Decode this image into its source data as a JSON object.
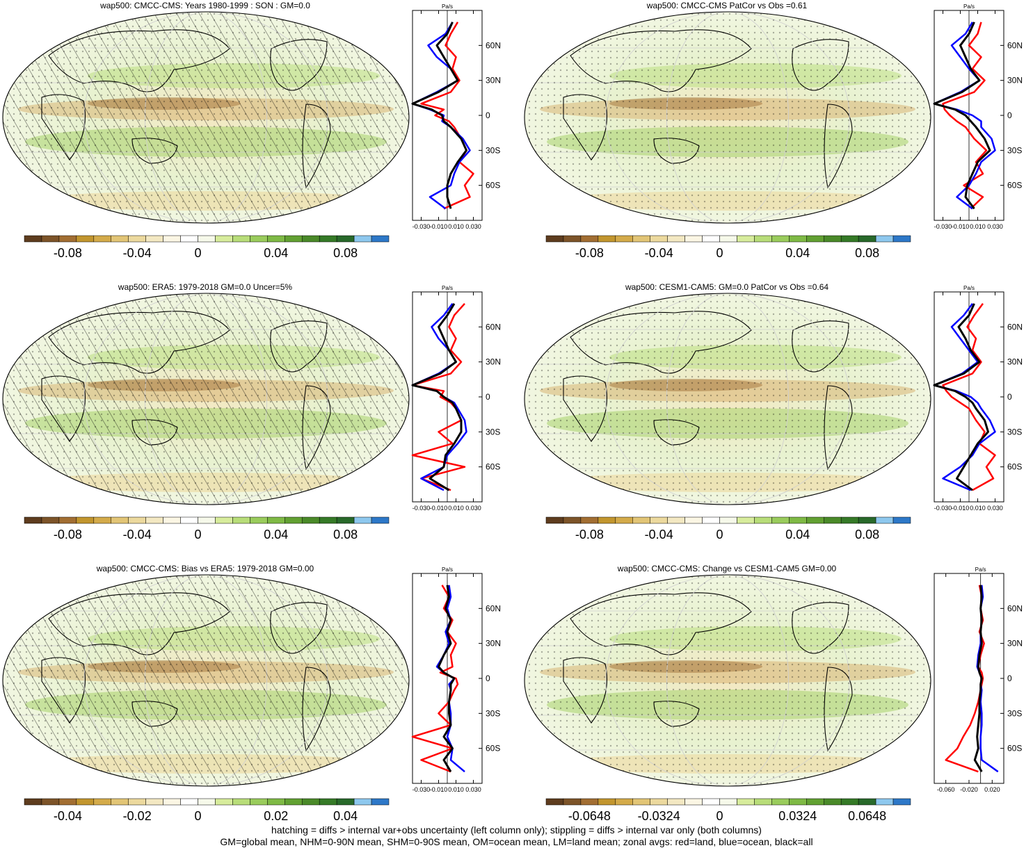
{
  "chart_data": [
    {
      "type": "heatmap",
      "title": "wap500: CMCC-CMS: Years 1980-1999 : SON : GM=0.0",
      "colorbar_ticks": [
        "-0.08",
        "-0.04",
        "0",
        "0.04",
        "0.08"
      ],
      "hatching": true,
      "stippling": true,
      "zonal": {
        "unit": "Pa/s",
        "xticks": [
          "-0.030",
          "-0.010",
          "0.010",
          "0.030"
        ],
        "xlim": [
          -0.04,
          0.04
        ],
        "yticks": [
          "60N",
          "30N",
          "0",
          "30S",
          "60S"
        ],
        "lat": [
          80,
          70,
          60,
          50,
          40,
          30,
          20,
          10,
          5,
          0,
          -5,
          -10,
          -20,
          -30,
          -40,
          -50,
          -60,
          -70,
          -80
        ],
        "series": [
          {
            "name": "land",
            "color": "#ff0000",
            "values": [
              0.012,
              0.004,
              -0.002,
              0.01,
              0.006,
              0.014,
              0.004,
              -0.03,
              -0.004,
              -0.014,
              0.002,
              0.008,
              0.016,
              0.022,
              0.014,
              0.03,
              0.02,
              0.026,
              -0.004
            ]
          },
          {
            "name": "ocean",
            "color": "#0000ff",
            "values": [
              0.006,
              -0.002,
              -0.022,
              -0.012,
              0.004,
              0.012,
              -0.012,
              -0.04,
              -0.02,
              -0.004,
              -0.006,
              0.004,
              0.018,
              0.026,
              0.014,
              0.008,
              0.004,
              -0.02,
              -0.002
            ]
          },
          {
            "name": "all",
            "color": "#000000",
            "values": [
              0.006,
              0.0,
              -0.012,
              -0.004,
              0.004,
              0.012,
              -0.01,
              -0.04,
              -0.018,
              -0.006,
              -0.004,
              0.004,
              0.016,
              0.022,
              0.012,
              0.004,
              0.0,
              0.0,
              0.004
            ]
          }
        ]
      }
    },
    {
      "type": "heatmap",
      "title": "wap500: CMCC-CMS PatCor vs Obs =0.61",
      "colorbar_ticks": [
        "-0.08",
        "-0.04",
        "0",
        "0.04",
        "0.08"
      ],
      "hatching": false,
      "stippling": true,
      "zonal": {
        "unit": "Pa/s",
        "xticks": [
          "-0.030",
          "-0.010",
          "0.010",
          "0.030"
        ],
        "xlim": [
          -0.04,
          0.04
        ],
        "yticks": [
          "60N",
          "30N",
          "0",
          "30S",
          "60S"
        ],
        "lat": [
          80,
          70,
          60,
          50,
          40,
          30,
          20,
          10,
          5,
          0,
          -5,
          -10,
          -20,
          -30,
          -40,
          -50,
          -60,
          -70,
          -80
        ],
        "series": [
          {
            "name": "land",
            "color": "#ff0000",
            "values": [
              0.014,
              0.01,
              0.0,
              0.014,
              0.004,
              0.018,
              0.006,
              -0.03,
              -0.028,
              -0.022,
              -0.014,
              -0.004,
              0.006,
              0.02,
              0.008,
              0.016,
              -0.006,
              0.016,
              0.002
            ]
          },
          {
            "name": "ocean",
            "color": "#0000ff",
            "values": [
              0.004,
              -0.004,
              -0.02,
              -0.01,
              0.0,
              0.012,
              -0.01,
              -0.04,
              -0.014,
              0.004,
              0.014,
              0.014,
              0.026,
              0.03,
              0.014,
              0.008,
              0.0,
              -0.014,
              0.004
            ]
          },
          {
            "name": "all",
            "color": "#000000",
            "values": [
              0.006,
              0.0,
              -0.01,
              -0.004,
              0.002,
              0.012,
              -0.008,
              -0.04,
              -0.016,
              -0.004,
              0.002,
              0.008,
              0.018,
              0.024,
              0.01,
              0.004,
              -0.002,
              -0.004,
              0.006
            ]
          }
        ]
      }
    },
    {
      "type": "heatmap",
      "title": "wap500: ERA5: 1979-2018 GM=0.0 Uncer=5%",
      "colorbar_ticks": [
        "-0.08",
        "-0.04",
        "0",
        "0.04",
        "0.08"
      ],
      "hatching": true,
      "stippling": true,
      "zonal": {
        "unit": "Pa/s",
        "xticks": [
          "-0.030",
          "-0.010",
          "0.010",
          "0.030"
        ],
        "xlim": [
          -0.04,
          0.04
        ],
        "yticks": [
          "60N",
          "30N",
          "0",
          "30S",
          "60S"
        ],
        "lat": [
          80,
          70,
          60,
          50,
          40,
          30,
          20,
          10,
          5,
          0,
          -5,
          -10,
          -20,
          -30,
          -40,
          -50,
          -60,
          -70,
          -80
        ],
        "series": [
          {
            "name": "land",
            "color": "#ff0000",
            "values": [
              0.02,
              0.008,
              0.002,
              0.01,
              0.004,
              0.016,
              0.004,
              -0.04,
              -0.004,
              -0.008,
              0.004,
              0.01,
              0.016,
              -0.01,
              0.006,
              -0.04,
              0.02,
              -0.03,
              0.004
            ]
          },
          {
            "name": "ocean",
            "color": "#0000ff",
            "values": [
              0.006,
              -0.004,
              -0.018,
              -0.01,
              0.002,
              0.01,
              -0.01,
              -0.04,
              -0.012,
              -0.004,
              0.008,
              0.012,
              0.02,
              0.022,
              0.012,
              0.0,
              -0.004,
              -0.03,
              -0.004
            ]
          },
          {
            "name": "all",
            "color": "#000000",
            "values": [
              0.008,
              0.0,
              -0.01,
              -0.004,
              0.002,
              0.01,
              -0.008,
              -0.04,
              -0.012,
              -0.004,
              0.006,
              0.01,
              0.016,
              0.016,
              0.008,
              -0.002,
              -0.004,
              -0.02,
              0.002
            ]
          }
        ]
      }
    },
    {
      "type": "heatmap",
      "title": "wap500: CESM1-CAM5: GM=0.0 PatCor vs Obs =0.64",
      "colorbar_ticks": [
        "-0.08",
        "-0.04",
        "0",
        "0.04",
        "0.08"
      ],
      "hatching": false,
      "stippling": true,
      "zonal": {
        "unit": "Pa/s",
        "xticks": [
          "-0.030",
          "-0.010",
          "0.010",
          "0.030"
        ],
        "xlim": [
          -0.04,
          0.04
        ],
        "yticks": [
          "60N",
          "30N",
          "0",
          "30S",
          "60S"
        ],
        "lat": [
          80,
          70,
          60,
          50,
          40,
          30,
          20,
          10,
          5,
          0,
          -5,
          -10,
          -20,
          -30,
          -40,
          -50,
          -60,
          -70,
          -80
        ],
        "series": [
          {
            "name": "land",
            "color": "#ff0000",
            "values": [
              0.016,
              0.006,
              -0.002,
              0.008,
              0.004,
              0.014,
              0.004,
              -0.03,
              -0.026,
              -0.02,
              -0.01,
              0.0,
              0.008,
              0.018,
              0.012,
              0.03,
              0.02,
              0.028,
              0.004
            ]
          },
          {
            "name": "ocean",
            "color": "#0000ff",
            "values": [
              0.004,
              -0.006,
              -0.02,
              -0.01,
              0.0,
              0.01,
              -0.008,
              -0.04,
              -0.014,
              0.002,
              0.01,
              0.014,
              0.024,
              0.03,
              0.012,
              0.004,
              -0.01,
              -0.03,
              0.002
            ]
          },
          {
            "name": "all",
            "color": "#000000",
            "values": [
              0.006,
              0.0,
              -0.012,
              -0.004,
              0.002,
              0.012,
              -0.006,
              -0.04,
              -0.016,
              -0.004,
              0.004,
              0.008,
              0.018,
              0.022,
              0.01,
              0.002,
              -0.006,
              -0.014,
              0.004
            ]
          }
        ]
      }
    },
    {
      "type": "heatmap",
      "title": "wap500: CMCC-CMS: Bias vs ERA5: 1979-2018  GM=0.00",
      "colorbar_ticks": [
        "-0.04",
        "-0.02",
        "0",
        "0.02",
        "0.04"
      ],
      "hatching": true,
      "stippling": true,
      "zonal": {
        "unit": "Pa/s",
        "xticks": [
          "-0.030",
          "-0.010",
          "0.010",
          "0.030"
        ],
        "xlim": [
          -0.04,
          0.04
        ],
        "yticks": [
          "60N",
          "30N",
          "0",
          "30S",
          "60S"
        ],
        "lat": [
          80,
          70,
          60,
          50,
          40,
          30,
          20,
          10,
          5,
          0,
          -5,
          -10,
          -20,
          -30,
          -40,
          -50,
          -60,
          -70,
          -80
        ],
        "series": [
          {
            "name": "land",
            "color": "#ff0000",
            "values": [
              -0.006,
              0.002,
              -0.004,
              0.006,
              0.0,
              0.01,
              0.004,
              0.006,
              -0.008,
              0.01,
              0.012,
              0.008,
              0.002,
              -0.01,
              0.004,
              -0.04,
              0.006,
              -0.03,
              0.004
            ]
          },
          {
            "name": "ocean",
            "color": "#0000ff",
            "values": [
              0.002,
              0.004,
              0.0,
              0.004,
              -0.002,
              0.002,
              -0.004,
              -0.012,
              -0.004,
              0.008,
              0.002,
              0.004,
              0.002,
              0.004,
              0.004,
              0.0,
              0.006,
              0.004,
              0.02
            ]
          },
          {
            "name": "all",
            "color": "#000000",
            "values": [
              0.0,
              0.002,
              -0.002,
              0.004,
              0.0,
              0.004,
              -0.004,
              -0.01,
              -0.004,
              0.008,
              0.004,
              0.004,
              0.002,
              0.002,
              0.004,
              -0.004,
              0.006,
              -0.004,
              0.004
            ]
          }
        ]
      }
    },
    {
      "type": "heatmap",
      "title": "wap500: CMCC-CMS: Change vs CESM1-CAM5 GM=0.00",
      "colorbar_ticks": [
        "-0.0648",
        "-0.0324",
        "0",
        "0.0324",
        "0.0648"
      ],
      "hatching": false,
      "stippling": true,
      "zonal": {
        "unit": "Pa/s",
        "xticks": [
          "-0.060",
          "-0.020",
          "0.020"
        ],
        "xlim": [
          -0.08,
          0.04
        ],
        "yticks": [
          "60N",
          "30N",
          "0",
          "30S",
          "60S"
        ],
        "lat": [
          80,
          70,
          60,
          50,
          40,
          30,
          20,
          10,
          5,
          0,
          -5,
          -10,
          -20,
          -30,
          -40,
          -50,
          -60,
          -70,
          -80
        ],
        "series": [
          {
            "name": "land",
            "color": "#ff0000",
            "values": [
              -0.002,
              0.002,
              0.0,
              0.004,
              -0.002,
              0.006,
              0.0,
              -0.004,
              0.002,
              0.004,
              0.002,
              0.0,
              -0.004,
              -0.01,
              -0.018,
              -0.03,
              -0.04,
              -0.06,
              -0.004
            ]
          },
          {
            "name": "ocean",
            "color": "#0000ff",
            "values": [
              0.002,
              0.004,
              0.0,
              0.002,
              0.0,
              0.0,
              -0.004,
              -0.006,
              -0.002,
              0.002,
              0.0,
              0.002,
              0.0,
              0.002,
              0.002,
              0.0,
              0.0,
              0.002,
              0.03
            ]
          },
          {
            "name": "all",
            "color": "#000000",
            "values": [
              0.0,
              0.002,
              0.0,
              0.002,
              0.0,
              0.002,
              -0.002,
              -0.004,
              -0.002,
              0.002,
              0.0,
              0.0,
              -0.002,
              -0.002,
              -0.004,
              -0.006,
              -0.004,
              -0.01,
              0.002
            ]
          }
        ]
      }
    }
  ],
  "colorbar_colors": [
    "#5e3c1e",
    "#7d5429",
    "#a26e32",
    "#c2962e",
    "#d4ab4a",
    "#e2c576",
    "#ecd99e",
    "#f3e8c2",
    "#fbf6e4",
    "#ffffff",
    "#f6f9ea",
    "#d7ec9c",
    "#b8dd79",
    "#9acc5c",
    "#7fba45",
    "#62a132",
    "#4a8a29",
    "#357a27",
    "#28692a",
    "#8ec8ee",
    "#2d78c8"
  ],
  "footer": [
    "hatching = diffs > internal var+obs uncertainty (left column only); stippling = diffs > internal var only (both columns)",
    "GM=global mean, NHM=0-90N mean, SHM=0-90S mean, OM=ocean mean, LM=land mean; zonal avgs: red=land, blue=ocean, black=all"
  ]
}
